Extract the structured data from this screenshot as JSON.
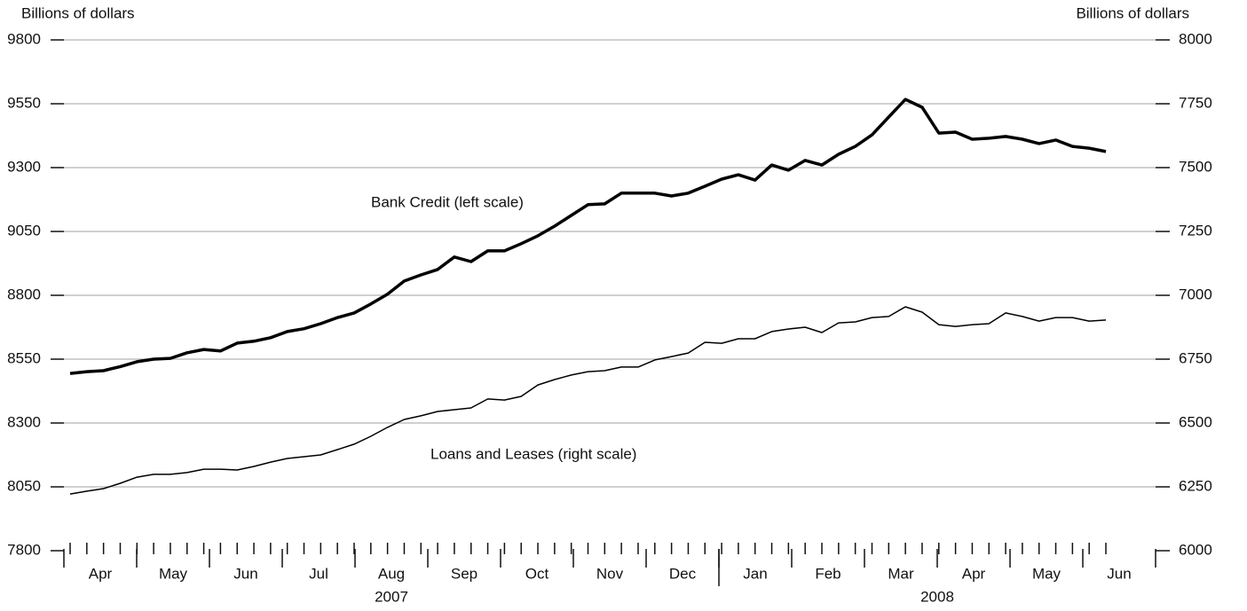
{
  "chart_data": {
    "type": "line",
    "y_label": "Billions of dollars",
    "y2_label": "Billions of dollars",
    "x_groups": [
      {
        "year": "2007",
        "months": [
          "Apr",
          "May",
          "Jun",
          "Jul",
          "Aug",
          "Sep",
          "Oct",
          "Nov",
          "Dec"
        ]
      },
      {
        "year": "2008",
        "months": [
          "Jan",
          "Feb",
          "Mar",
          "Apr",
          "May",
          "Jun"
        ]
      }
    ],
    "categories": [
      null,
      null,
      null,
      null,
      null,
      null,
      null,
      null,
      null,
      null,
      null,
      null,
      null,
      null,
      null,
      null,
      null,
      null,
      null,
      null,
      null,
      null,
      null,
      null,
      null,
      null,
      null,
      null,
      null,
      null,
      null,
      null,
      null,
      null,
      null,
      null,
      null,
      null,
      null,
      null,
      null,
      null,
      null,
      null,
      null,
      null,
      null,
      null,
      null,
      null,
      null,
      null,
      null,
      null,
      null,
      null,
      null,
      null,
      null,
      null,
      null,
      null,
      null
    ],
    "ylim": [
      7800,
      9800
    ],
    "yticks": [
      7800,
      8050,
      8300,
      8550,
      8800,
      9050,
      9300,
      9550,
      9800
    ],
    "y2lim": [
      6000,
      8000
    ],
    "y2ticks": [
      6000,
      6250,
      6500,
      6750,
      7000,
      7250,
      7500,
      7750,
      8000
    ],
    "grid": true,
    "series": [
      {
        "name": "Bank Credit (left scale)",
        "color": "#000000",
        "width": 3.5,
        "axis": "y",
        "values": [
          8494,
          8501,
          8505,
          8521,
          8540,
          8550,
          8553,
          8575,
          8588,
          8582,
          8613,
          8620,
          8634,
          8658,
          8669,
          8689,
          8713,
          8731,
          8766,
          8804,
          8856,
          8880,
          8901,
          8950,
          8932,
          8974,
          8974,
          9002,
          9033,
          9071,
          9113,
          9155,
          9158,
          9200,
          9200,
          9200,
          9189,
          9200,
          9227,
          9255,
          9272,
          9251,
          9310,
          9290,
          9328,
          9310,
          9352,
          9383,
          9428,
          9498,
          9567,
          9536,
          9435,
          9439,
          9411,
          9415,
          9422,
          9411,
          9394,
          9408,
          9383,
          9376,
          9363
        ]
      },
      {
        "name": "Loans and Leases (right scale)",
        "color": "#000000",
        "width": 1.5,
        "axis": "y2",
        "values": [
          6222,
          6233,
          6243,
          6264,
          6288,
          6299,
          6299,
          6306,
          6319,
          6319,
          6316,
          6330,
          6347,
          6361,
          6368,
          6375,
          6396,
          6417,
          6448,
          6483,
          6514,
          6528,
          6545,
          6552,
          6559,
          6594,
          6590,
          6604,
          6649,
          6670,
          6688,
          6701,
          6705,
          6719,
          6719,
          6747,
          6760,
          6774,
          6816,
          6812,
          6830,
          6830,
          6858,
          6868,
          6875,
          6854,
          6892,
          6896,
          6913,
          6917,
          6955,
          6934,
          6885,
          6878,
          6885,
          6889,
          6931,
          6917,
          6899,
          6913,
          6913,
          6899,
          6903
        ]
      }
    ]
  }
}
